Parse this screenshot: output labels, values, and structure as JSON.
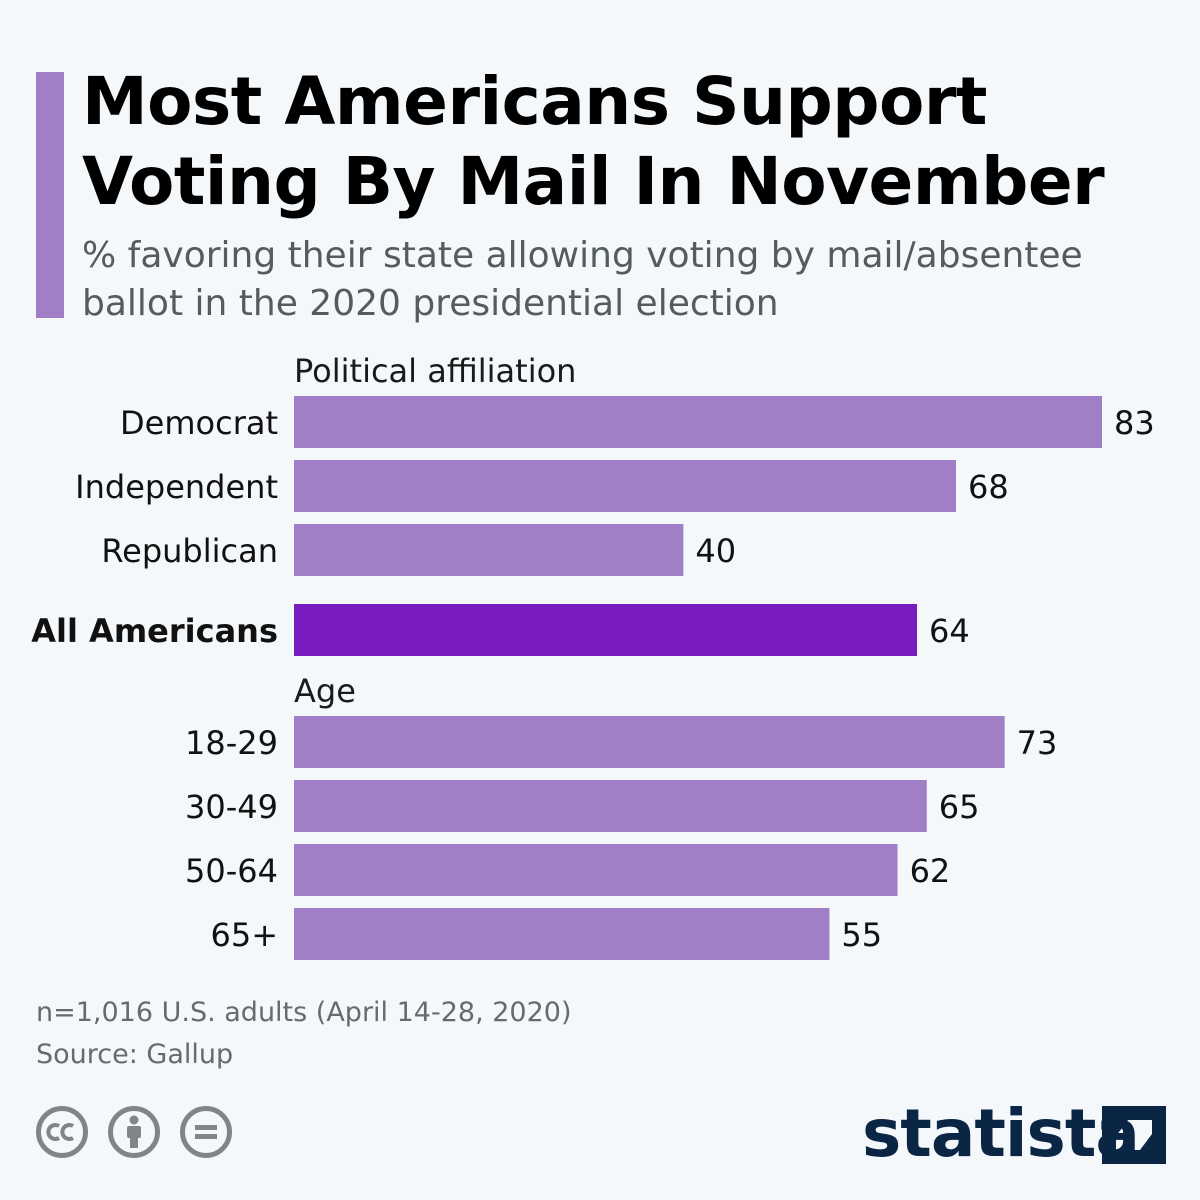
{
  "title": {
    "line1": "Most Americans Support",
    "line2": "Voting By Mail In November"
  },
  "subtitle": {
    "line1": "% favoring their state allowing voting by mail/absentee",
    "line2": "ballot in the 2020 presidential election"
  },
  "colors": {
    "accent": "#a07fc7",
    "bar": "#a07fc7",
    "highlight": "#781bbf",
    "brand": "#0b2545",
    "text": "#1a1a1a"
  },
  "chart_data": {
    "type": "bar",
    "orientation": "horizontal",
    "groups": [
      {
        "label": "Political affiliation",
        "categories": [
          "Democrat",
          "Independent",
          "Republican"
        ],
        "values": [
          83,
          68,
          40
        ]
      },
      {
        "label": "",
        "categories": [
          "All Americans"
        ],
        "values": [
          64
        ],
        "highlight": true
      },
      {
        "label": "Age",
        "categories": [
          "18-29",
          "30-49",
          "50-64",
          "65+"
        ],
        "values": [
          73,
          65,
          62,
          55
        ]
      }
    ],
    "xlim": [
      0,
      83
    ],
    "grid": false,
    "legend": "none"
  },
  "footer": {
    "note": "n=1,016 U.S. adults (April 14-28, 2020)",
    "source": "Source: Gallup"
  },
  "license_icons": [
    "creative-commons-icon",
    "attribution-person-icon",
    "no-derivatives-icon"
  ],
  "brand": {
    "name": "statista",
    "logo_icon": "statista-logo-icon"
  }
}
